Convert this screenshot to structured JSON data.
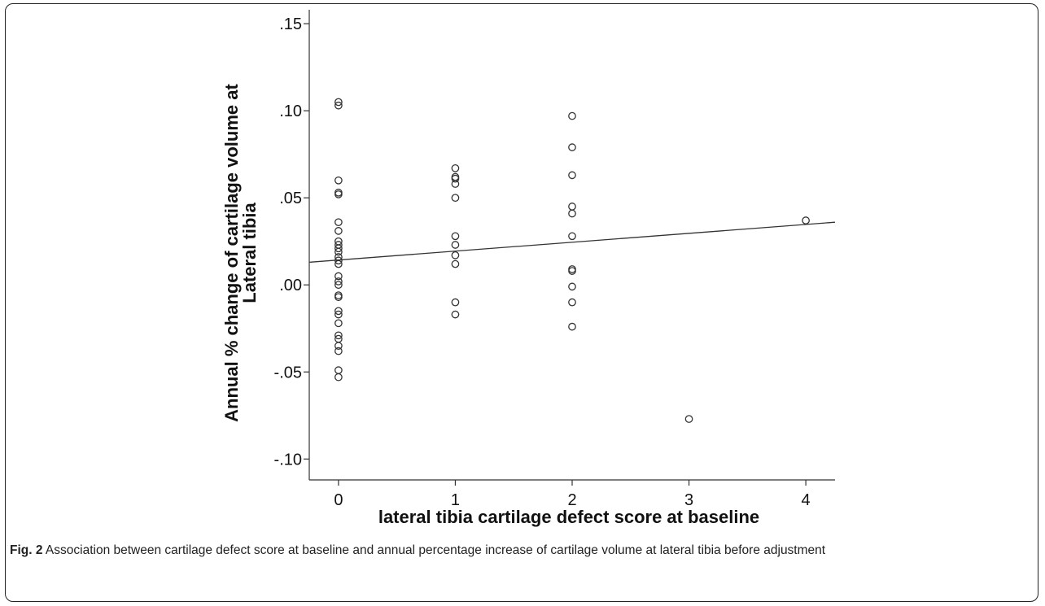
{
  "caption": {
    "label": "Fig. 2",
    "text": " Association between cartilage defect score at baseline and annual percentage increase of cartilage volume at lateral tibia before adjustment"
  },
  "chart_data": {
    "type": "scatter",
    "title": "",
    "xlabel": "lateral tibia cartilage defect score at baseline",
    "ylabel": [
      "Annual % change of cartilage volume at",
      "Lateral tibia"
    ],
    "xlim": [
      -0.25,
      4.25
    ],
    "ylim": [
      -0.112,
      0.158
    ],
    "x_ticks": [
      0,
      1,
      2,
      3,
      4
    ],
    "x_tick_labels": [
      "0",
      "1",
      "2",
      "3",
      "4"
    ],
    "y_ticks": [
      0.15,
      0.1,
      0.05,
      0.0,
      -0.05,
      -0.1
    ],
    "y_tick_labels": [
      ".15",
      ".10",
      ".05",
      ".00",
      "-.05",
      "-.10"
    ],
    "grid": false,
    "marker": "open-circle",
    "points": [
      {
        "x": 0,
        "y": 0.105
      },
      {
        "x": 0,
        "y": 0.103
      },
      {
        "x": 0,
        "y": 0.06
      },
      {
        "x": 0,
        "y": 0.053
      },
      {
        "x": 0,
        "y": 0.052
      },
      {
        "x": 0,
        "y": 0.036
      },
      {
        "x": 0,
        "y": 0.031
      },
      {
        "x": 0,
        "y": 0.025
      },
      {
        "x": 0,
        "y": 0.023
      },
      {
        "x": 0,
        "y": 0.021
      },
      {
        "x": 0,
        "y": 0.019
      },
      {
        "x": 0,
        "y": 0.016
      },
      {
        "x": 0,
        "y": 0.014
      },
      {
        "x": 0,
        "y": 0.012
      },
      {
        "x": 0,
        "y": 0.005
      },
      {
        "x": 0,
        "y": 0.002
      },
      {
        "x": 0,
        "y": 0.0
      },
      {
        "x": 0,
        "y": -0.006
      },
      {
        "x": 0,
        "y": -0.007
      },
      {
        "x": 0,
        "y": -0.015
      },
      {
        "x": 0,
        "y": -0.017
      },
      {
        "x": 0,
        "y": -0.022
      },
      {
        "x": 0,
        "y": -0.029
      },
      {
        "x": 0,
        "y": -0.031
      },
      {
        "x": 0,
        "y": -0.035
      },
      {
        "x": 0,
        "y": -0.038
      },
      {
        "x": 0,
        "y": -0.049
      },
      {
        "x": 0,
        "y": -0.053
      },
      {
        "x": 1,
        "y": 0.067
      },
      {
        "x": 1,
        "y": 0.062
      },
      {
        "x": 1,
        "y": 0.061
      },
      {
        "x": 1,
        "y": 0.058
      },
      {
        "x": 1,
        "y": 0.05
      },
      {
        "x": 1,
        "y": 0.028
      },
      {
        "x": 1,
        "y": 0.023
      },
      {
        "x": 1,
        "y": 0.017
      },
      {
        "x": 1,
        "y": 0.012
      },
      {
        "x": 1,
        "y": -0.01
      },
      {
        "x": 1,
        "y": -0.017
      },
      {
        "x": 2,
        "y": 0.097
      },
      {
        "x": 2,
        "y": 0.079
      },
      {
        "x": 2,
        "y": 0.063
      },
      {
        "x": 2,
        "y": 0.045
      },
      {
        "x": 2,
        "y": 0.041
      },
      {
        "x": 2,
        "y": 0.028
      },
      {
        "x": 2,
        "y": 0.009
      },
      {
        "x": 2,
        "y": 0.008
      },
      {
        "x": 2,
        "y": -0.001
      },
      {
        "x": 2,
        "y": -0.01
      },
      {
        "x": 2,
        "y": -0.024
      },
      {
        "x": 3,
        "y": -0.077
      },
      {
        "x": 4,
        "y": 0.037
      }
    ],
    "fit_line": {
      "x": [
        -0.25,
        4.25
      ],
      "y": [
        0.013,
        0.036
      ]
    }
  }
}
